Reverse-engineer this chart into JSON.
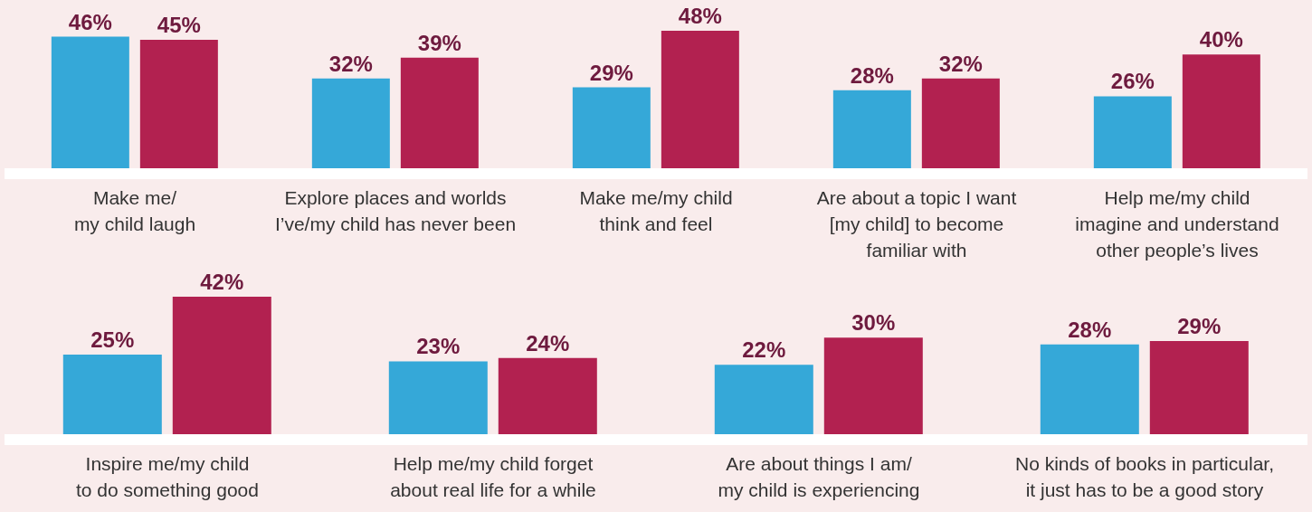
{
  "chart_data": [
    {
      "type": "bar",
      "categories": [
        "Make me/\nmy child laugh",
        "Explore places and worlds\nI’ve/my child has never been",
        "Make me/my child\nthink and feel",
        "Are about a topic I want\n[my child] to become\nfamiliar with",
        "Help me/my child\nimagine and understand\nother people’s lives"
      ],
      "series": [
        {
          "color": "#35a8d8",
          "values": [
            46,
            32,
            29,
            28,
            26
          ],
          "value_labels": [
            "46%",
            "32%",
            "29%",
            "28%",
            "26%"
          ]
        },
        {
          "color": "#b22150",
          "values": [
            45,
            39,
            48,
            32,
            40
          ],
          "value_labels": [
            "45%",
            "39%",
            "48%",
            "32%",
            "40%"
          ]
        }
      ]
    },
    {
      "type": "bar",
      "categories": [
        "Inspire me/my child\nto do something good",
        "Help me/my child forget\nabout real life for a while",
        "Are about things I am/\nmy child is experiencing",
        "No kinds of books in particular,\nit just has to be a good story"
      ],
      "series": [
        {
          "color": "#35a8d8",
          "values": [
            25,
            23,
            22,
            28
          ],
          "value_labels": [
            "25%",
            "23%",
            "22%",
            "28%"
          ]
        },
        {
          "color": "#b22150",
          "values": [
            42,
            24,
            30,
            29
          ],
          "value_labels": [
            "42%",
            "24%",
            "30%",
            "29%"
          ]
        }
      ]
    }
  ]
}
